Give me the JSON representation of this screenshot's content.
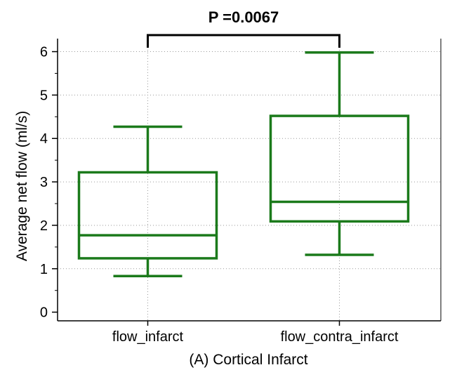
{
  "chart_data": {
    "type": "box",
    "title": "",
    "xlabel": "(A) Cortical Infarct",
    "ylabel": "Average net flow (ml/s)",
    "ylim": [
      -0.2,
      6.3
    ],
    "yticks": [
      0,
      1,
      2,
      3,
      4,
      5,
      6
    ],
    "grid": true,
    "color": "#1b7a1b",
    "categories": [
      "flow_infarct",
      "flow_contra_infarct"
    ],
    "boxes": [
      {
        "category": "flow_infarct",
        "whisker_low": 0.83,
        "q1": 1.24,
        "median": 1.77,
        "q3": 3.22,
        "whisker_high": 4.27
      },
      {
        "category": "flow_contra_infarct",
        "whisker_low": 1.32,
        "q1": 2.09,
        "median": 2.54,
        "q3": 4.52,
        "whisker_high": 5.98
      }
    ],
    "annotation": {
      "text": "P =0.0067",
      "between": [
        "flow_infarct",
        "flow_contra_infarct"
      ],
      "y": 6.4
    }
  }
}
